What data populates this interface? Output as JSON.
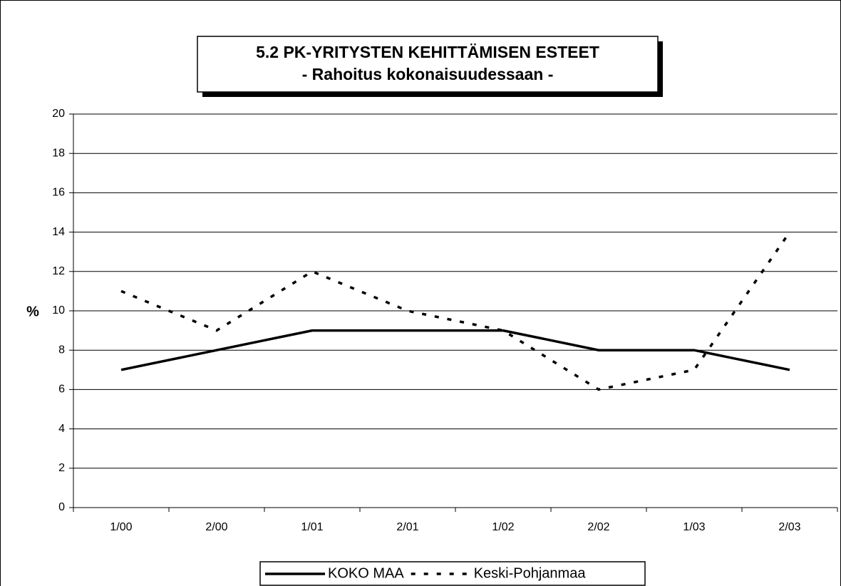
{
  "chart_data": {
    "type": "line",
    "title": "5.2 PK-YRITYSTEN KEHITTÄMISEN ESTEET",
    "subtitle": "- Rahoitus kokonaisuudessaan -",
    "y_label": "%",
    "categories": [
      "1/00",
      "2/00",
      "1/01",
      "2/01",
      "1/02",
      "2/02",
      "1/03",
      "2/03"
    ],
    "series": [
      {
        "name": "KOKO MAA",
        "color": "#000000",
        "style": "solid",
        "values": [
          7,
          8,
          9,
          9,
          9,
          8,
          8,
          7
        ]
      },
      {
        "name": "Keski-Pohjanmaa",
        "color": "#000000",
        "style": "dashed",
        "values": [
          11,
          9,
          12,
          10,
          9,
          6,
          7,
          14
        ]
      }
    ],
    "ylim": [
      0,
      20
    ],
    "yticks": [
      0,
      2,
      4,
      6,
      8,
      10,
      12,
      14,
      16,
      18,
      20
    ],
    "grid": true,
    "legend": "bottom"
  }
}
